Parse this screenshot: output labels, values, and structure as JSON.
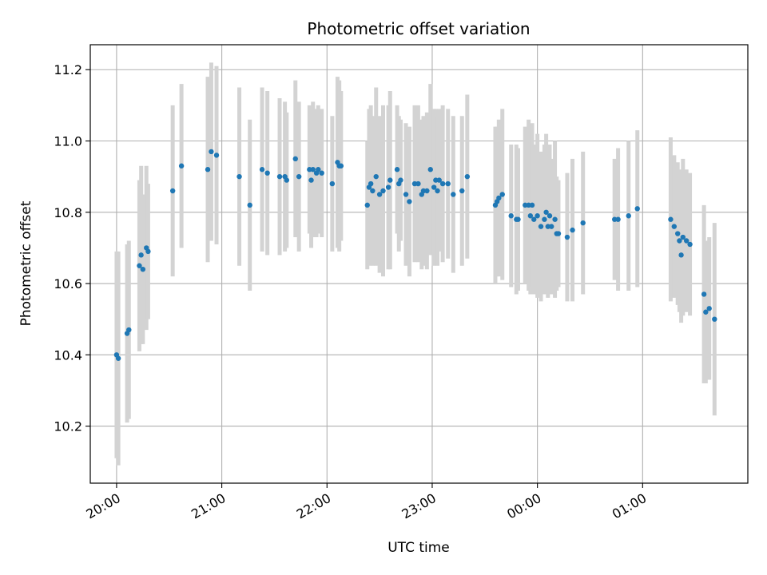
{
  "chart_data": {
    "type": "scatter",
    "title": "Photometric offset variation",
    "xlabel": "UTC time",
    "ylabel": "Photometric offset",
    "x_unit": "UTC time (HH:MM, night spanning midnight)",
    "xlim": [
      "19:45",
      "02:00"
    ],
    "ylim": [
      10.04,
      11.27
    ],
    "grid": true,
    "x_ticks": [
      {
        "value": "20:00",
        "label": "20:00"
      },
      {
        "value": "21:00",
        "label": "21:00"
      },
      {
        "value": "22:00",
        "label": "22:00"
      },
      {
        "value": "23:00",
        "label": "23:00"
      },
      {
        "value": "00:00",
        "label": "00:00"
      },
      {
        "value": "01:00",
        "label": "01:00"
      }
    ],
    "y_ticks": [
      {
        "value": 10.2,
        "label": "10.2"
      },
      {
        "value": 10.4,
        "label": "10.4"
      },
      {
        "value": 10.6,
        "label": "10.6"
      },
      {
        "value": 10.8,
        "label": "10.8"
      },
      {
        "value": 11.0,
        "label": "11.0"
      },
      {
        "value": 11.2,
        "label": "11.2"
      }
    ],
    "colors": {
      "points": "#1f77b4",
      "errorbars": "#d3d3d3",
      "grid": "#b0b0b0"
    },
    "series": [
      {
        "error_bars": true,
        "points": [
          {
            "x": "20:00",
            "y": 10.4,
            "err": 0.29
          },
          {
            "x": "20:01",
            "y": 10.39,
            "err": 0.3
          },
          {
            "x": "20:06",
            "y": 10.46,
            "err": 0.25
          },
          {
            "x": "20:07",
            "y": 10.47,
            "err": 0.25
          },
          {
            "x": "20:13",
            "y": 10.65,
            "err": 0.24
          },
          {
            "x": "20:14",
            "y": 10.68,
            "err": 0.25
          },
          {
            "x": "20:15",
            "y": 10.64,
            "err": 0.21
          },
          {
            "x": "20:17",
            "y": 10.7,
            "err": 0.23
          },
          {
            "x": "20:18",
            "y": 10.69,
            "err": 0.19
          },
          {
            "x": "20:32",
            "y": 10.86,
            "err": 0.24
          },
          {
            "x": "20:37",
            "y": 10.93,
            "err": 0.23
          },
          {
            "x": "20:52",
            "y": 10.92,
            "err": 0.26
          },
          {
            "x": "20:54",
            "y": 10.97,
            "err": 0.25
          },
          {
            "x": "20:57",
            "y": 10.96,
            "err": 0.25
          },
          {
            "x": "21:10",
            "y": 10.9,
            "err": 0.25
          },
          {
            "x": "21:16",
            "y": 10.82,
            "err": 0.24
          },
          {
            "x": "21:23",
            "y": 10.92,
            "err": 0.23
          },
          {
            "x": "21:26",
            "y": 10.91,
            "err": 0.23
          },
          {
            "x": "21:33",
            "y": 10.9,
            "err": 0.22
          },
          {
            "x": "21:36",
            "y": 10.9,
            "err": 0.21
          },
          {
            "x": "21:37",
            "y": 10.89,
            "err": 0.19
          },
          {
            "x": "21:42",
            "y": 10.95,
            "err": 0.22
          },
          {
            "x": "21:44",
            "y": 10.9,
            "err": 0.21
          },
          {
            "x": "21:50",
            "y": 10.92,
            "err": 0.18
          },
          {
            "x": "21:51",
            "y": 10.89,
            "err": 0.19
          },
          {
            "x": "21:52",
            "y": 10.92,
            "err": 0.19
          },
          {
            "x": "21:54",
            "y": 10.91,
            "err": 0.18
          },
          {
            "x": "21:55",
            "y": 10.92,
            "err": 0.18
          },
          {
            "x": "21:57",
            "y": 10.91,
            "err": 0.18
          },
          {
            "x": "22:03",
            "y": 10.88,
            "err": 0.19
          },
          {
            "x": "22:06",
            "y": 10.94,
            "err": 0.24
          },
          {
            "x": "22:07",
            "y": 10.93,
            "err": 0.24
          },
          {
            "x": "22:08",
            "y": 10.93,
            "err": 0.21
          },
          {
            "x": "22:23",
            "y": 10.82,
            "err": 0.18
          },
          {
            "x": "22:24",
            "y": 10.87,
            "err": 0.22
          },
          {
            "x": "22:25",
            "y": 10.88,
            "err": 0.22
          },
          {
            "x": "22:26",
            "y": 10.86,
            "err": 0.21
          },
          {
            "x": "22:28",
            "y": 10.9,
            "err": 0.25
          },
          {
            "x": "22:30",
            "y": 10.85,
            "err": 0.22
          },
          {
            "x": "22:32",
            "y": 10.86,
            "err": 0.24
          },
          {
            "x": "22:35",
            "y": 10.87,
            "err": 0.23
          },
          {
            "x": "22:36",
            "y": 10.89,
            "err": 0.25
          },
          {
            "x": "22:40",
            "y": 10.92,
            "err": 0.18
          },
          {
            "x": "22:41",
            "y": 10.88,
            "err": 0.19
          },
          {
            "x": "22:42",
            "y": 10.89,
            "err": 0.17
          },
          {
            "x": "22:45",
            "y": 10.85,
            "err": 0.2
          },
          {
            "x": "22:47",
            "y": 10.83,
            "err": 0.21
          },
          {
            "x": "22:50",
            "y": 10.88,
            "err": 0.22
          },
          {
            "x": "22:52",
            "y": 10.88,
            "err": 0.22
          },
          {
            "x": "22:54",
            "y": 10.85,
            "err": 0.21
          },
          {
            "x": "22:55",
            "y": 10.86,
            "err": 0.21
          },
          {
            "x": "22:57",
            "y": 10.86,
            "err": 0.22
          },
          {
            "x": "22:59",
            "y": 10.92,
            "err": 0.24
          },
          {
            "x": "23:01",
            "y": 10.87,
            "err": 0.22
          },
          {
            "x": "23:02",
            "y": 10.89,
            "err": 0.2
          },
          {
            "x": "23:03",
            "y": 10.86,
            "err": 0.21
          },
          {
            "x": "23:04",
            "y": 10.89,
            "err": 0.2
          },
          {
            "x": "23:06",
            "y": 10.88,
            "err": 0.22
          },
          {
            "x": "23:09",
            "y": 10.88,
            "err": 0.21
          },
          {
            "x": "23:12",
            "y": 10.85,
            "err": 0.22
          },
          {
            "x": "23:17",
            "y": 10.86,
            "err": 0.21
          },
          {
            "x": "23:20",
            "y": 10.9,
            "err": 0.23
          },
          {
            "x": "23:36",
            "y": 10.82,
            "err": 0.22
          },
          {
            "x": "23:37",
            "y": 10.83,
            "err": 0.21
          },
          {
            "x": "23:38",
            "y": 10.84,
            "err": 0.22
          },
          {
            "x": "23:40",
            "y": 10.85,
            "err": 0.24
          },
          {
            "x": "23:45",
            "y": 10.79,
            "err": 0.2
          },
          {
            "x": "23:48",
            "y": 10.78,
            "err": 0.21
          },
          {
            "x": "23:49",
            "y": 10.78,
            "err": 0.2
          },
          {
            "x": "23:53",
            "y": 10.82,
            "err": 0.22
          },
          {
            "x": "23:55",
            "y": 10.82,
            "err": 0.24
          },
          {
            "x": "23:56",
            "y": 10.79,
            "err": 0.22
          },
          {
            "x": "23:57",
            "y": 10.82,
            "err": 0.23
          },
          {
            "x": "23:58",
            "y": 10.78,
            "err": 0.21
          },
          {
            "x": "00:00",
            "y": 10.79,
            "err": 0.23
          },
          {
            "x": "00:02",
            "y": 10.76,
            "err": 0.21
          },
          {
            "x": "00:04",
            "y": 10.78,
            "err": 0.21
          },
          {
            "x": "00:05",
            "y": 10.8,
            "err": 0.22
          },
          {
            "x": "00:06",
            "y": 10.76,
            "err": 0.2
          },
          {
            "x": "00:07",
            "y": 10.79,
            "err": 0.2
          },
          {
            "x": "00:08",
            "y": 10.76,
            "err": 0.19
          },
          {
            "x": "00:10",
            "y": 10.78,
            "err": 0.22
          },
          {
            "x": "00:11",
            "y": 10.74,
            "err": 0.16
          },
          {
            "x": "00:12",
            "y": 10.74,
            "err": 0.15
          },
          {
            "x": "00:17",
            "y": 10.73,
            "err": 0.18
          },
          {
            "x": "00:20",
            "y": 10.75,
            "err": 0.2
          },
          {
            "x": "00:26",
            "y": 10.77,
            "err": 0.2
          },
          {
            "x": "00:44",
            "y": 10.78,
            "err": 0.17
          },
          {
            "x": "00:46",
            "y": 10.78,
            "err": 0.2
          },
          {
            "x": "00:52",
            "y": 10.79,
            "err": 0.21
          },
          {
            "x": "00:57",
            "y": 10.81,
            "err": 0.22
          },
          {
            "x": "01:16",
            "y": 10.78,
            "err": 0.23
          },
          {
            "x": "01:18",
            "y": 10.76,
            "err": 0.2
          },
          {
            "x": "01:20",
            "y": 10.74,
            "err": 0.2
          },
          {
            "x": "01:21",
            "y": 10.72,
            "err": 0.2
          },
          {
            "x": "01:22",
            "y": 10.68,
            "err": 0.19
          },
          {
            "x": "01:23",
            "y": 10.73,
            "err": 0.22
          },
          {
            "x": "01:25",
            "y": 10.72,
            "err": 0.2
          },
          {
            "x": "01:27",
            "y": 10.71,
            "err": 0.2
          },
          {
            "x": "01:35",
            "y": 10.57,
            "err": 0.25
          },
          {
            "x": "01:36",
            "y": 10.52,
            "err": 0.2
          },
          {
            "x": "01:38",
            "y": 10.53,
            "err": 0.2
          },
          {
            "x": "01:41",
            "y": 10.5,
            "err": 0.27
          }
        ]
      }
    ]
  }
}
